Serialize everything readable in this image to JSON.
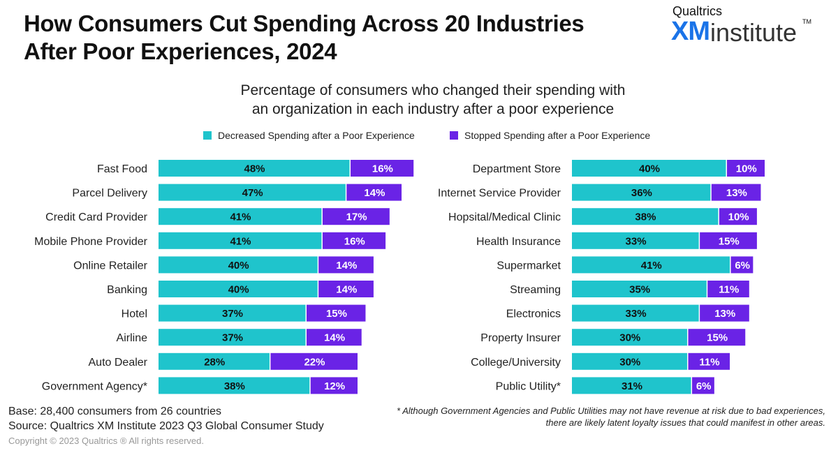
{
  "title": [
    "How Consumers Cut Spending Across 20 Industries",
    "After Poor Experiences, 2024"
  ],
  "logo": {
    "brand": "Qualtrics",
    "xm": "XM",
    "word": "institute",
    "tm": "TM"
  },
  "colors": {
    "decreased": "#1fc4cc",
    "stopped": "#6a23e6"
  },
  "footer": {
    "base": "Base: 28,400 consumers from 26 countries",
    "source": "Source: Qualtrics XM Institute 2023 Q3 Global Consumer Study",
    "copyright": "Copyright © 2023 Qualtrics ® All rights reserved."
  },
  "note": [
    "* Although Government Agencies and Public Utilities may not have revenue at risk due to bad experiences,",
    "there are likely latent loyalty issues that could manifest in other areas."
  ],
  "chart_data": [
    {
      "type": "bar",
      "orientation": "horizontal",
      "stacked": true,
      "title": "Percentage of consumers who changed their spending with an organization in each industry after a poor experience",
      "legend": [
        "Decreased Spending after a Poor Experience",
        "Stopped Spending after a Poor Experience"
      ],
      "categories": [
        "Fast Food",
        "Parcel Delivery",
        "Credit Card Provider",
        "Mobile Phone Provider",
        "Online Retailer",
        "Banking",
        "Hotel",
        "Airline",
        "Auto Dealer",
        "Government Agency*"
      ],
      "series": [
        {
          "name": "Decreased Spending after a Poor Experience",
          "values": [
            48,
            47,
            41,
            41,
            40,
            40,
            37,
            37,
            28,
            38
          ]
        },
        {
          "name": "Stopped Spending after a Poor Experience",
          "values": [
            16,
            14,
            17,
            16,
            14,
            14,
            15,
            14,
            22,
            12
          ]
        }
      ]
    },
    {
      "type": "bar",
      "orientation": "horizontal",
      "stacked": true,
      "categories": [
        "Department Store",
        "Internet Service Provider",
        "Hopsital/Medical Clinic",
        "Health Insurance",
        "Supermarket",
        "Streaming",
        "Electronics",
        "Property Insurer",
        "College/University",
        "Public Utility*"
      ],
      "series": [
        {
          "name": "Decreased Spending after a Poor Experience",
          "values": [
            40,
            36,
            38,
            33,
            41,
            35,
            33,
            30,
            30,
            31
          ]
        },
        {
          "name": "Stopped Spending after a Poor Experience",
          "values": [
            10,
            13,
            10,
            15,
            6,
            11,
            13,
            15,
            11,
            6
          ]
        }
      ]
    }
  ]
}
